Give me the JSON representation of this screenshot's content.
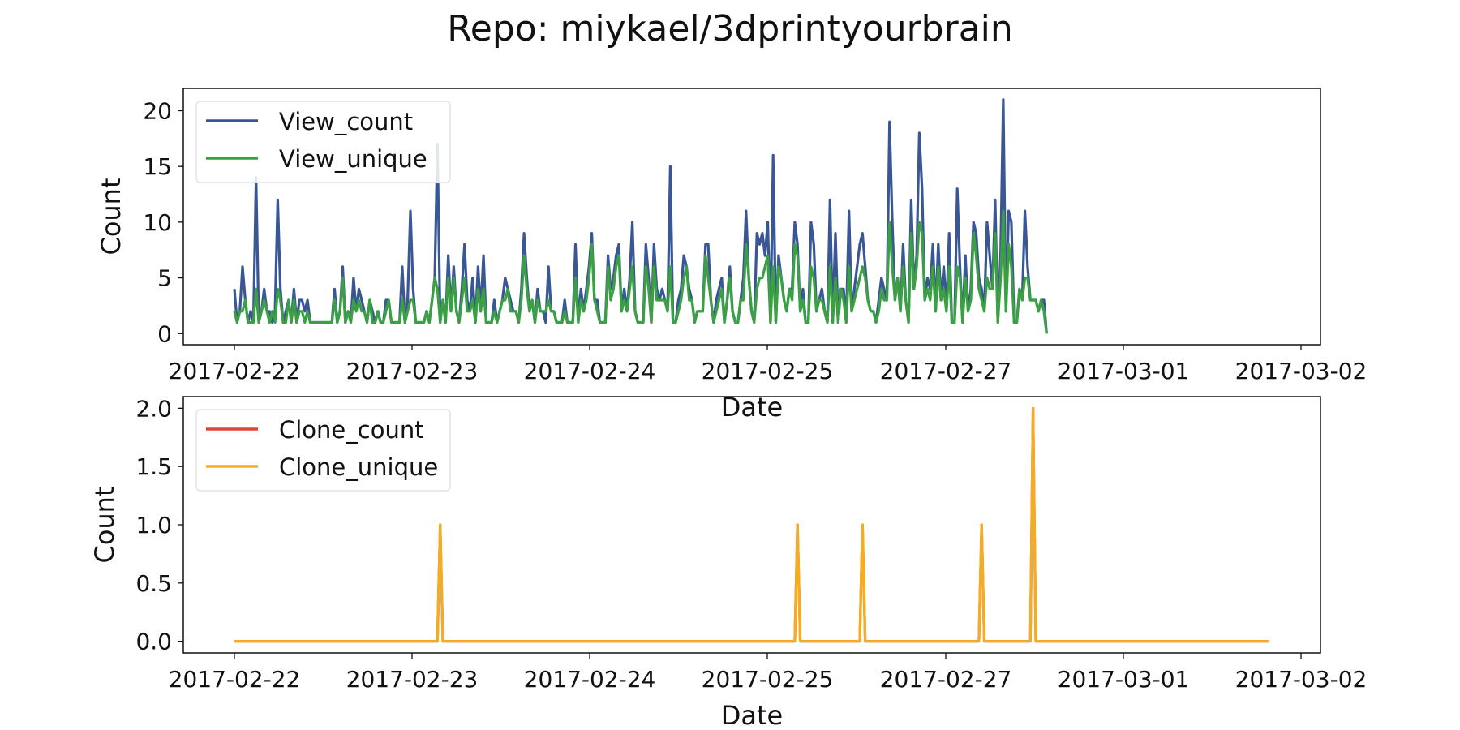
{
  "title": "Repo: miykael/3dprintyourbrain",
  "chart_data": [
    {
      "type": "line",
      "xlabel": "Date",
      "ylabel": "Count",
      "ylim": [
        -1,
        22
      ],
      "yticks": [
        0,
        5,
        10,
        15,
        20
      ],
      "ytick_labels": [
        "0",
        "5",
        "10",
        "15",
        "20"
      ],
      "xlim": [
        "2017-02-21 17:00",
        "2017-03-02 07:00"
      ],
      "xticks": [
        "2017-02-22",
        "2017-02-23",
        "2017-02-24",
        "2017-02-25",
        "2017-02-27",
        "2017-03-01",
        "2017-03-02"
      ],
      "legend": "upper-left",
      "grid": false,
      "x_start": "2017-02-22 00:00",
      "x_step_hours": 0.5,
      "series": [
        {
          "name": "View_count",
          "color": "#3a5795",
          "values": [
            4,
            1,
            2,
            6,
            3,
            1,
            2,
            1,
            14,
            1,
            2,
            4,
            2,
            2,
            1,
            2,
            12,
            4,
            1,
            2,
            3,
            1,
            4,
            1,
            3,
            3,
            2,
            3,
            1,
            1,
            1,
            1,
            1,
            1,
            1,
            1,
            1,
            4,
            1,
            2,
            6,
            1,
            2,
            1,
            5,
            2,
            4,
            3,
            2,
            1,
            3,
            2,
            1,
            2,
            1,
            1,
            3,
            3,
            1,
            1,
            1,
            1,
            6,
            1,
            3,
            11,
            4,
            1,
            1,
            1,
            1,
            2,
            1,
            3,
            5,
            17,
            1,
            3,
            1,
            7,
            2,
            6,
            2,
            1,
            4,
            8,
            3,
            2,
            5,
            1,
            6,
            2,
            7,
            1,
            1,
            1,
            3,
            1,
            2,
            3,
            5,
            4,
            3,
            2,
            2,
            1,
            4,
            9,
            5,
            2,
            3,
            1,
            4,
            2,
            2,
            1,
            6,
            2,
            2,
            1,
            1,
            1,
            3,
            1,
            1,
            1,
            8,
            1,
            4,
            2,
            4,
            6,
            9,
            3,
            3,
            1,
            1,
            1,
            7,
            4,
            5,
            7,
            8,
            2,
            4,
            2,
            5,
            10,
            2,
            1,
            1,
            1,
            8,
            5,
            1,
            8,
            4,
            3,
            4,
            3,
            2,
            15,
            1,
            1,
            3,
            4,
            7,
            6,
            4,
            3,
            1,
            2,
            2,
            2,
            8,
            8,
            3,
            1,
            3,
            4,
            5,
            1,
            3,
            6,
            2,
            1,
            1,
            3,
            5,
            11,
            5,
            2,
            1,
            9,
            8,
            9,
            7,
            10,
            1,
            16,
            1,
            7,
            5,
            3,
            2,
            4,
            4,
            10,
            8,
            2,
            4,
            1,
            1,
            10,
            8,
            2,
            3,
            4,
            2,
            1,
            12,
            1,
            9,
            1,
            4,
            4,
            1,
            11,
            2,
            4,
            6,
            8,
            9,
            6,
            3,
            2,
            2,
            1,
            3,
            5,
            4,
            3,
            19,
            10,
            3,
            5,
            2,
            8,
            3,
            1,
            12,
            4,
            7,
            18,
            13,
            3,
            5,
            4,
            8,
            2,
            8,
            3,
            6,
            2,
            9,
            1,
            1,
            13,
            6,
            1,
            7,
            2,
            4,
            10,
            9,
            5,
            4,
            2,
            10,
            7,
            4,
            12,
            1,
            7,
            21,
            2,
            11,
            10,
            1,
            1,
            4,
            3,
            11,
            6,
            3,
            3,
            3,
            2,
            3,
            3,
            0
          ]
        },
        {
          "name": "View_unique",
          "color": "#3aa043",
          "values": [
            2,
            1,
            2,
            2,
            3,
            1,
            1,
            1,
            4,
            1,
            2,
            3,
            2,
            1,
            2,
            1,
            4,
            3,
            1,
            1,
            3,
            1,
            3,
            1,
            2,
            2,
            1,
            2,
            1,
            1,
            1,
            1,
            1,
            1,
            1,
            1,
            1,
            3,
            1,
            2,
            5,
            1,
            2,
            1,
            3,
            2,
            3,
            2,
            2,
            1,
            3,
            1,
            1,
            2,
            1,
            1,
            2,
            3,
            1,
            1,
            1,
            1,
            3,
            1,
            2,
            3,
            3,
            1,
            1,
            1,
            1,
            2,
            1,
            3,
            5,
            4,
            1,
            3,
            1,
            5,
            2,
            5,
            2,
            1,
            3,
            5,
            2,
            2,
            3,
            1,
            4,
            2,
            4,
            1,
            1,
            1,
            2,
            1,
            2,
            3,
            3,
            4,
            2,
            2,
            2,
            1,
            3,
            7,
            4,
            2,
            3,
            1,
            3,
            2,
            2,
            2,
            3,
            2,
            2,
            1,
            1,
            1,
            2,
            1,
            1,
            1,
            5,
            1,
            3,
            2,
            3,
            5,
            8,
            3,
            2,
            1,
            1,
            1,
            6,
            3,
            4,
            6,
            7,
            2,
            3,
            2,
            4,
            6,
            2,
            1,
            1,
            1,
            6,
            4,
            1,
            6,
            3,
            3,
            3,
            3,
            2,
            6,
            1,
            1,
            2,
            3,
            5,
            6,
            3,
            3,
            1,
            2,
            2,
            2,
            7,
            5,
            3,
            1,
            2,
            3,
            4,
            1,
            3,
            5,
            2,
            1,
            1,
            3,
            3,
            8,
            5,
            2,
            1,
            4,
            5,
            5,
            6,
            7,
            1,
            6,
            1,
            6,
            5,
            3,
            2,
            4,
            3,
            8,
            7,
            2,
            3,
            1,
            1,
            6,
            5,
            2,
            3,
            3,
            2,
            1,
            6,
            1,
            5,
            1,
            4,
            3,
            1,
            6,
            2,
            3,
            4,
            5,
            6,
            5,
            3,
            2,
            2,
            1,
            2,
            4,
            3,
            3,
            10,
            6,
            3,
            5,
            2,
            6,
            3,
            1,
            9,
            4,
            6,
            10,
            9,
            3,
            4,
            3,
            6,
            2,
            6,
            3,
            4,
            2,
            6,
            1,
            1,
            6,
            5,
            1,
            5,
            2,
            3,
            9,
            7,
            4,
            3,
            2,
            5,
            4,
            4,
            9,
            1,
            5,
            11,
            2,
            8,
            6,
            1,
            1,
            4,
            3,
            5,
            5,
            3,
            3,
            3,
            2,
            3,
            2,
            0
          ]
        }
      ]
    },
    {
      "type": "line",
      "xlabel": "Date",
      "ylabel": "Count",
      "ylim": [
        -0.1,
        2.1
      ],
      "yticks": [
        0,
        0.5,
        1,
        1.5,
        2
      ],
      "ytick_labels": [
        "0.0",
        "0.5",
        "1.0",
        "1.5",
        "2.0"
      ],
      "xlim": [
        "2017-02-21 17:00",
        "2017-03-02 07:00"
      ],
      "xticks": [
        "2017-02-22",
        "2017-02-23",
        "2017-02-24",
        "2017-02-25",
        "2017-02-27",
        "2017-03-01",
        "2017-03-02"
      ],
      "legend": "upper-left",
      "grid": false,
      "series": [
        {
          "name": "Clone_count",
          "color": "#e0453a",
          "points": [
            [
              "2017-02-22 00:00",
              0
            ],
            [
              "2017-02-23 13:30",
              0
            ],
            [
              "2017-02-23 14:00",
              1
            ],
            [
              "2017-02-23 14:30",
              0
            ],
            [
              "2017-02-26 07:30",
              0
            ],
            [
              "2017-02-26 08:00",
              1
            ],
            [
              "2017-02-26 08:30",
              0
            ],
            [
              "2017-02-26 19:30",
              0
            ],
            [
              "2017-02-26 20:00",
              1
            ],
            [
              "2017-02-26 20:30",
              0
            ],
            [
              "2017-02-27 17:30",
              0
            ],
            [
              "2017-02-27 18:00",
              1
            ],
            [
              "2017-02-27 18:30",
              0
            ],
            [
              "2017-02-28 03:00",
              0
            ],
            [
              "2017-02-28 03:30",
              2
            ],
            [
              "2017-02-28 04:00",
              0
            ],
            [
              "2017-03-01 23:00",
              0
            ]
          ]
        },
        {
          "name": "Clone_unique",
          "color": "#f5ad1f",
          "points": [
            [
              "2017-02-22 00:00",
              0
            ],
            [
              "2017-02-23 13:30",
              0
            ],
            [
              "2017-02-23 14:00",
              1
            ],
            [
              "2017-02-23 14:30",
              0
            ],
            [
              "2017-02-26 07:30",
              0
            ],
            [
              "2017-02-26 08:00",
              1
            ],
            [
              "2017-02-26 08:30",
              0
            ],
            [
              "2017-02-26 19:30",
              0
            ],
            [
              "2017-02-26 20:00",
              1
            ],
            [
              "2017-02-26 20:30",
              0
            ],
            [
              "2017-02-27 17:30",
              0
            ],
            [
              "2017-02-27 18:00",
              1
            ],
            [
              "2017-02-27 18:30",
              0
            ],
            [
              "2017-02-28 03:00",
              0
            ],
            [
              "2017-02-28 03:30",
              2
            ],
            [
              "2017-02-28 04:00",
              0
            ],
            [
              "2017-03-01 23:00",
              0
            ]
          ]
        }
      ]
    }
  ]
}
